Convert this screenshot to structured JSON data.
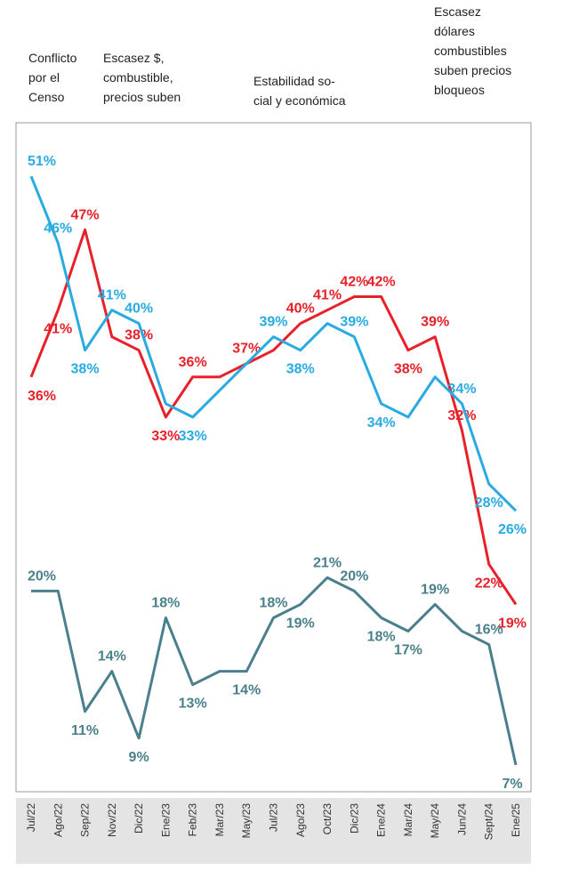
{
  "chart_data": {
    "type": "line",
    "annotations": [
      {
        "lines": [
          "Conflicto",
          "por el",
          "Censo"
        ]
      },
      {
        "lines": [
          "Escasez $,",
          "combustible,",
          "precios suben"
        ]
      },
      {
        "lines": [
          "Estabilidad so-",
          "cial y económica"
        ]
      },
      {
        "lines": [
          "Escasez",
          "dólares",
          "combustibles",
          "suben precios",
          "bloqueos"
        ]
      }
    ],
    "categories": [
      "Jul/22",
      "Ago/22",
      "Sep/22",
      "Nov/22",
      "Dic/22",
      "Ene/23",
      "Feb/23",
      "Mar/23",
      "May/23",
      "Jul/23",
      "Ago/23",
      "Oct/23",
      "Dic/23",
      "Ene/24",
      "Mar/24",
      "May/24",
      "Jun/24",
      "Sept/24",
      "Ene/25"
    ],
    "ylim": [
      5,
      55
    ],
    "series": [
      {
        "color": "#e8202a",
        "values": [
          36,
          41,
          47,
          39,
          38,
          33,
          36,
          36,
          37,
          38,
          40,
          41,
          42,
          42,
          38,
          39,
          32,
          22,
          19
        ],
        "value_labels": [
          "36%",
          "41%",
          "47%",
          null,
          "38%",
          "33%",
          "36%",
          null,
          "37%",
          null,
          "40%",
          "41%",
          "42%",
          "42%",
          "38%",
          "39%",
          "32%",
          "22%",
          "19%"
        ]
      },
      {
        "color": "#29abe2",
        "values": [
          51,
          46,
          38,
          41,
          40,
          34,
          33,
          35,
          37,
          39,
          38,
          40,
          39,
          34,
          33,
          36,
          34,
          28,
          26
        ],
        "value_labels": [
          "51%",
          "46%",
          "38%",
          "41%",
          "40%",
          null,
          "33%",
          null,
          null,
          "39%",
          "38%",
          null,
          "39%",
          "34%",
          null,
          null,
          "34%",
          "28%",
          "26%"
        ]
      },
      {
        "color": "#4a7f8c",
        "values": [
          20,
          20,
          11,
          14,
          9,
          18,
          13,
          14,
          14,
          18,
          19,
          21,
          20,
          18,
          17,
          19,
          17,
          16,
          7
        ],
        "value_labels": [
          "20%",
          null,
          "11%",
          "14%",
          "9%",
          "18%",
          "13%",
          null,
          "14%",
          "18%",
          "19%",
          "21%",
          "20%",
          "18%",
          "17%",
          "19%",
          null,
          "16%",
          "7%"
        ]
      }
    ]
  }
}
